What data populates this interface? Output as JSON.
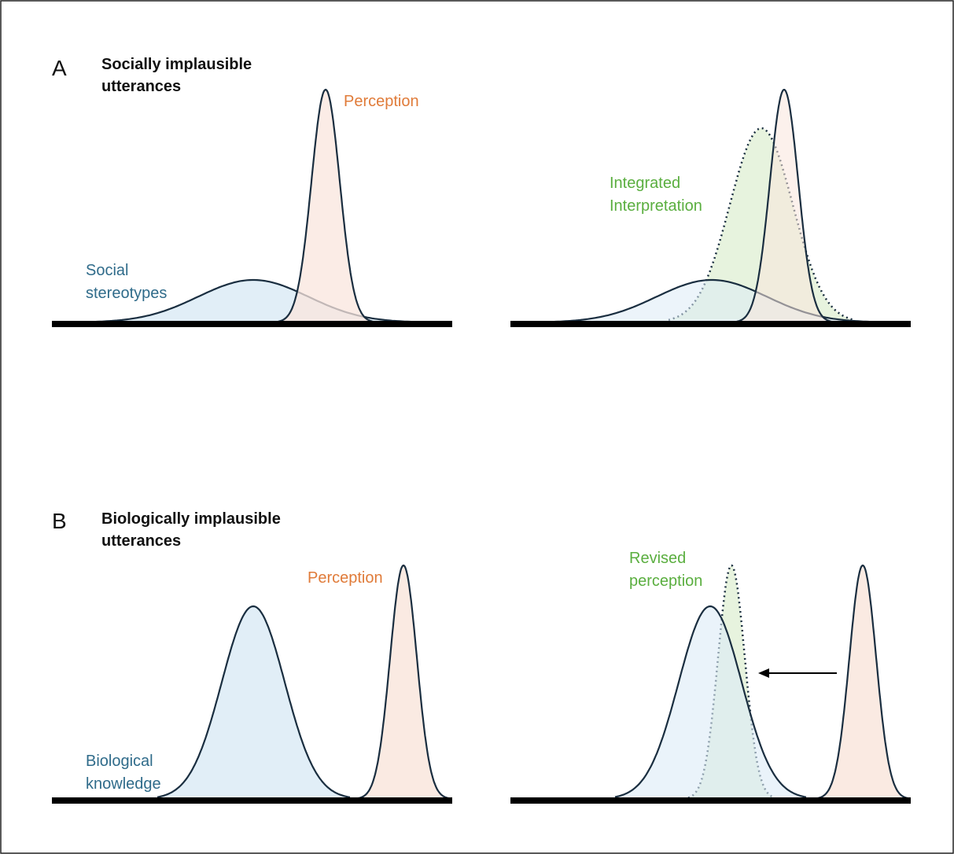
{
  "colors": {
    "perception_label": "#e07b39",
    "prior_label": "#2f6b8a",
    "integration_label": "#5aae3f",
    "blue_fill": "#dcebf6",
    "peach_fill": "#f9e6dd",
    "green_fill": "#e3f1d8",
    "curve_stroke": "#1a2e40"
  },
  "panel_a": {
    "letter": "A",
    "title_line1": "Socially implausible",
    "title_line2": "utterances",
    "perception_label": "Perception",
    "stereotype_label_line1": "Social",
    "stereotype_label_line2": "stereotypes",
    "integrated_label_line1": "Integrated",
    "integrated_label_line2": "Interpretation"
  },
  "panel_b": {
    "letter": "B",
    "title_line1": "Biologically implausible",
    "title_line2": "utterances",
    "perception_label": "Perception",
    "knowledge_label_line1": "Biological",
    "knowledge_label_line2": "knowledge",
    "revised_label_line1": "Revised",
    "revised_label_line2": "perception"
  }
}
